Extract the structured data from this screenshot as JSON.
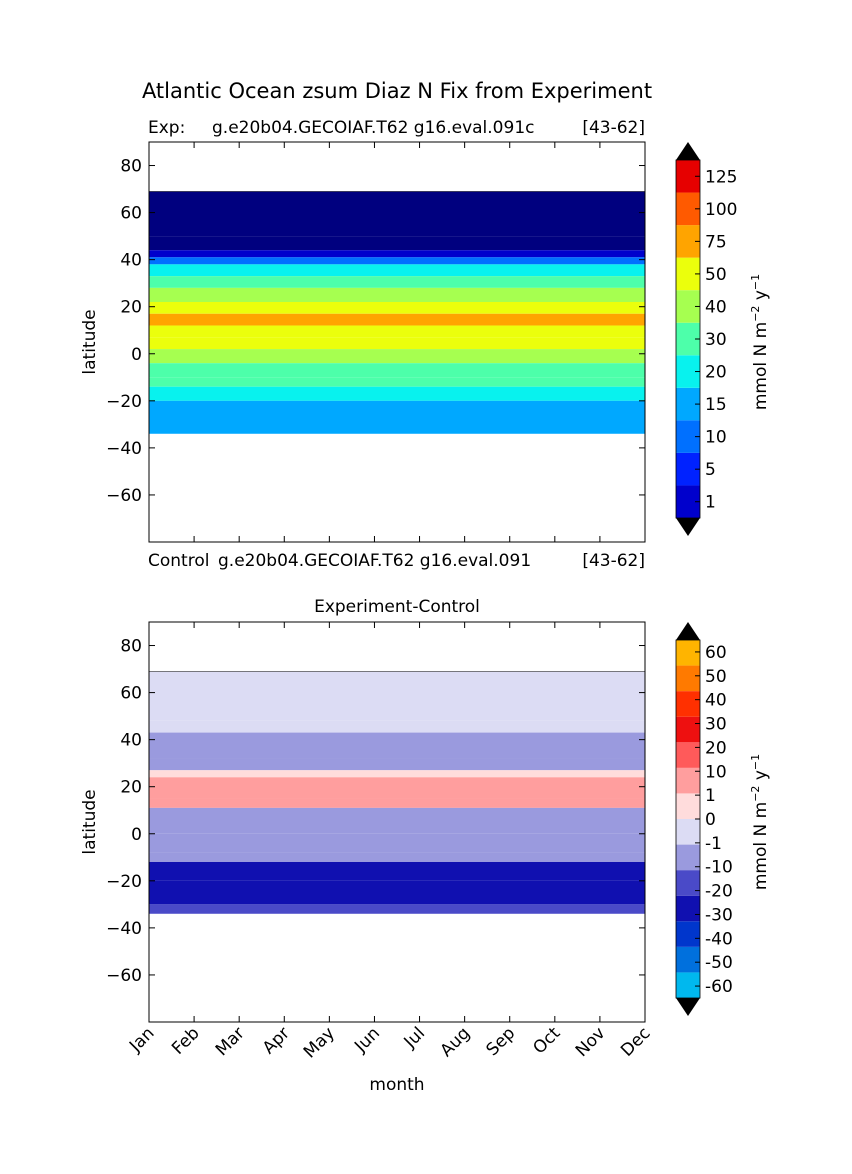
{
  "figure": {
    "title": "Atlantic Ocean zsum Diaz N Fix from Experiment",
    "exp_label": "Exp:",
    "exp_case": "g.e20b04.GECOIAF.T62 g16.eval.091c",
    "exp_years": "[43-62]",
    "ctrl_label": "Control",
    "ctrl_case": "g.e20b04.GECOIAF.T62 g16.eval.091",
    "ctrl_years": "[43-62]",
    "diff_title": "Experiment-Control",
    "xlabel": "month",
    "ylabel": "latitude",
    "cbar_unit": "mmol N m",
    "cbar_unit_exp1": "−2",
    "cbar_unit_mid": " y",
    "cbar_unit_exp2": "−1"
  },
  "chart_data": [
    {
      "type": "heatmap",
      "name": "experiment",
      "x": [
        "Jan",
        "Feb",
        "Mar",
        "Apr",
        "May",
        "Jun",
        "Jul",
        "Aug",
        "Sep",
        "Oct",
        "Nov",
        "Dec"
      ],
      "ylim": [
        -80,
        90
      ],
      "yticks": [
        80,
        60,
        40,
        20,
        0,
        -20,
        -40,
        -60
      ],
      "data_lat_range": [
        -34,
        69
      ],
      "levels": [
        1,
        5,
        10,
        15,
        20,
        30,
        40,
        50,
        75,
        100,
        125
      ],
      "colorbar_labels": [
        "125",
        "100",
        "75",
        "50",
        "40",
        "30",
        "20",
        "15",
        "10",
        "5",
        "1"
      ],
      "colors": [
        "#00007f",
        "#0000cc",
        "#0022ff",
        "#0070ff",
        "#00a8ff",
        "#08f2ee",
        "#4dffaa",
        "#a6ff50",
        "#ebff0c",
        "#ffa400",
        "#ff5a00",
        "#e60000",
        "#800000"
      ],
      "extend": "both",
      "latitude_profile": [
        {
          "lat": 69,
          "value": 0.5
        },
        {
          "lat": 50,
          "value": 0.6
        },
        {
          "lat": 44,
          "value": 3
        },
        {
          "lat": 41,
          "value": 12
        },
        {
          "lat": 38,
          "value": 22
        },
        {
          "lat": 33,
          "value": 35
        },
        {
          "lat": 28,
          "value": 45
        },
        {
          "lat": 22,
          "value": 62
        },
        {
          "lat": 17,
          "value": 80
        },
        {
          "lat": 12,
          "value": 70
        },
        {
          "lat": 7,
          "value": 55
        },
        {
          "lat": 2,
          "value": 47
        },
        {
          "lat": -4,
          "value": 38
        },
        {
          "lat": -10,
          "value": 32
        },
        {
          "lat": -14,
          "value": 25
        },
        {
          "lat": -20,
          "value": 18
        },
        {
          "lat": -34,
          "value": 17
        }
      ]
    },
    {
      "type": "heatmap",
      "name": "experiment-control",
      "x": [
        "Jan",
        "Feb",
        "Mar",
        "Apr",
        "May",
        "Jun",
        "Jul",
        "Aug",
        "Sep",
        "Oct",
        "Nov",
        "Dec"
      ],
      "ylim": [
        -80,
        90
      ],
      "yticks": [
        80,
        60,
        40,
        20,
        0,
        -20,
        -40,
        -60
      ],
      "data_lat_range": [
        -34,
        69
      ],
      "levels": [
        -60,
        -50,
        -40,
        -30,
        -20,
        -10,
        -1,
        0,
        1,
        10,
        20,
        30,
        40,
        50,
        60
      ],
      "colorbar_labels": [
        "60",
        "50",
        "40",
        "30",
        "20",
        "10",
        "1",
        "0",
        "-1",
        "-10",
        "-20",
        "-30",
        "-40",
        "-50",
        "-60"
      ],
      "colors": [
        "#00ffff",
        "#00b8ee",
        "#0070dd",
        "#0036cc",
        "#1010b0",
        "#4a4ac8",
        "#9a9ade",
        "#dcdcf4",
        "#ffdcdc",
        "#ff9e9e",
        "#ff5a5a",
        "#ee1010",
        "#ff3000",
        "#ff7a00",
        "#ffb400",
        "#ffff00"
      ],
      "extend": "both",
      "latitude_profile": [
        {
          "lat": 69,
          "value": -0.5
        },
        {
          "lat": 48,
          "value": -0.6
        },
        {
          "lat": 43,
          "value": -5
        },
        {
          "lat": 32,
          "value": -6
        },
        {
          "lat": 27,
          "value": 0.5
        },
        {
          "lat": 24,
          "value": 5
        },
        {
          "lat": 15,
          "value": 4
        },
        {
          "lat": 11,
          "value": -3
        },
        {
          "lat": 0,
          "value": -4
        },
        {
          "lat": -8,
          "value": -5
        },
        {
          "lat": -12,
          "value": -25
        },
        {
          "lat": -20,
          "value": -28
        },
        {
          "lat": -30,
          "value": -15
        },
        {
          "lat": -34,
          "value": -5
        }
      ]
    }
  ]
}
